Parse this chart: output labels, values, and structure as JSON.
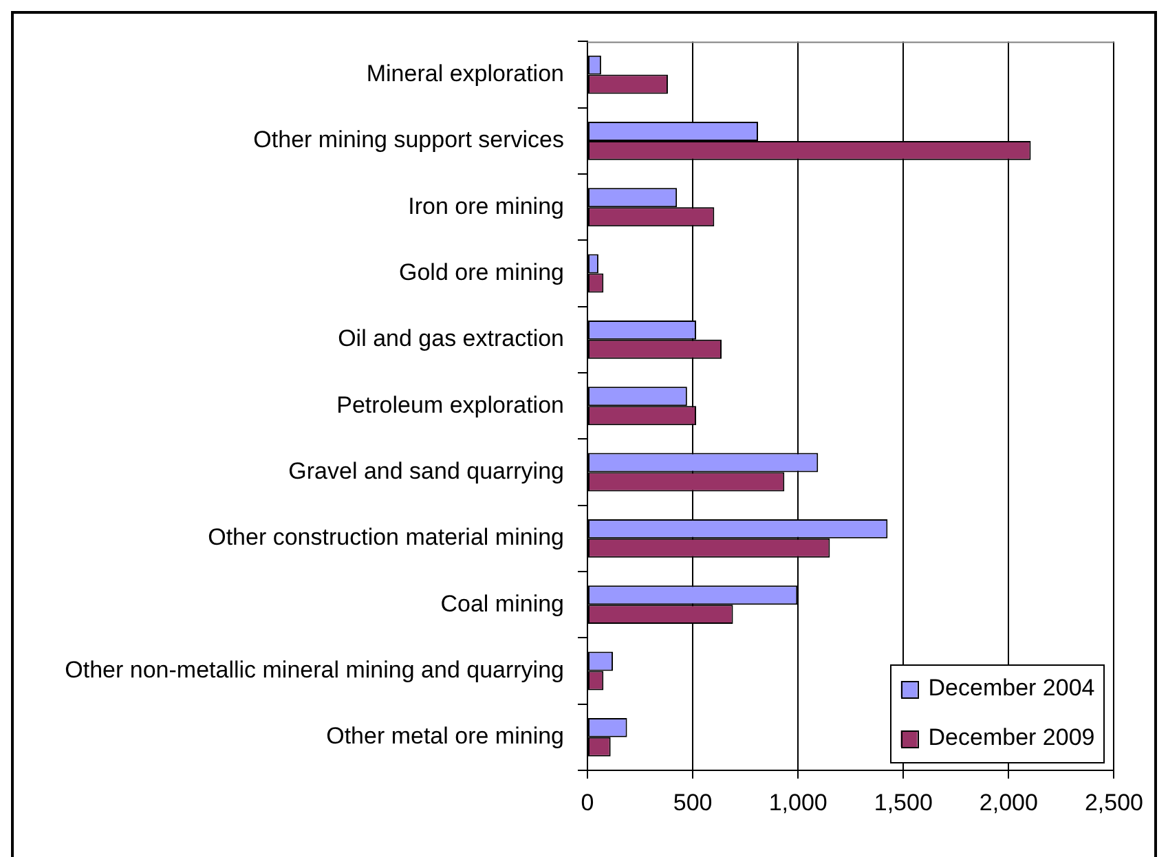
{
  "chart_data": {
    "type": "bar",
    "orientation": "horizontal",
    "categories": [
      "Mineral exploration",
      "Other mining support services",
      "Iron ore mining",
      "Gold ore mining",
      "Oil and gas extraction",
      "Petroleum exploration",
      "Gravel and sand quarrying",
      "Other construction material mining",
      "Coal mining",
      "Other non-metallic mineral mining and quarrying",
      "Other metal ore mining"
    ],
    "series": [
      {
        "name": "December 2004",
        "color": "#9999ff",
        "values": [
          65,
          810,
          425,
          52,
          516,
          473,
          1095,
          1425,
          997,
          121,
          188
        ]
      },
      {
        "name": "December 2009",
        "color": "#993366",
        "values": [
          382,
          2105,
          602,
          76,
          637,
          516,
          935,
          1151,
          691,
          76,
          110
        ]
      }
    ],
    "xlim": [
      0,
      2500
    ],
    "xticks": [
      0,
      500,
      {
        "value": 1000,
        "label": "1,000"
      },
      {
        "value": 1500,
        "label": "1,500"
      },
      {
        "value": 2000,
        "label": "2,000"
      },
      {
        "value": 2500,
        "label": "2,500"
      }
    ],
    "grid": "x",
    "legend": "bottom right"
  }
}
